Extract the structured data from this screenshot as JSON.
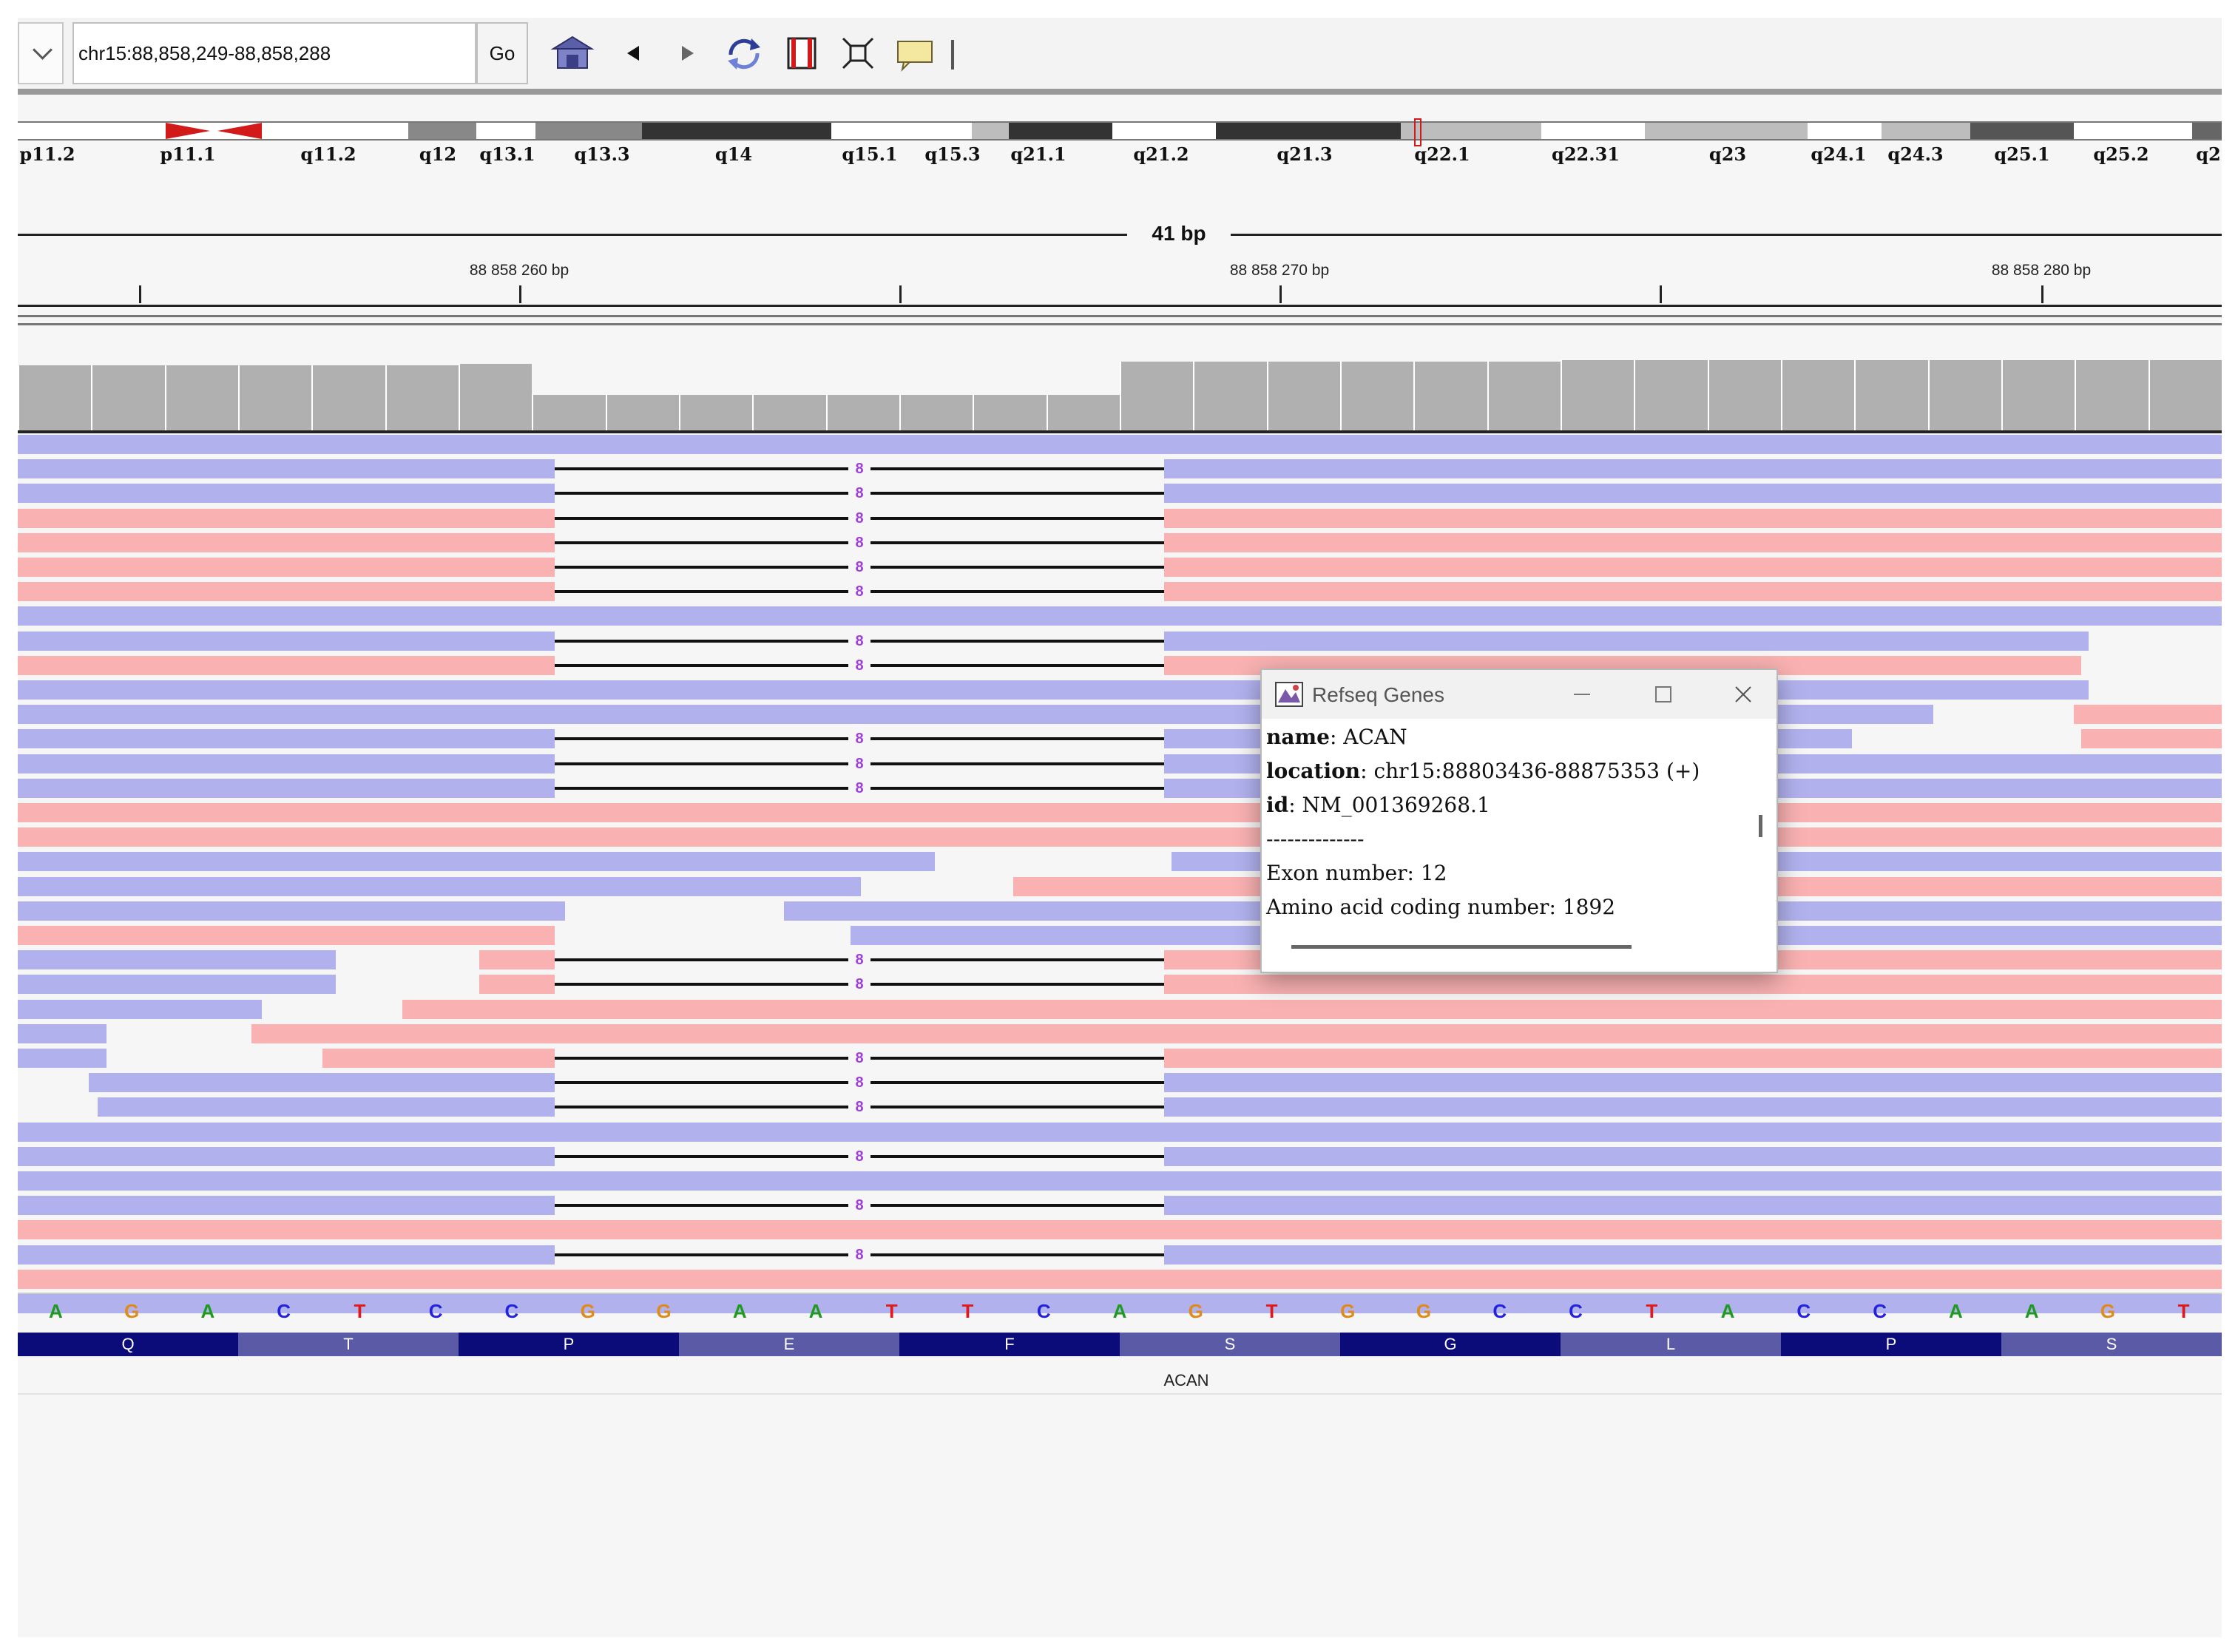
{
  "toolbar": {
    "locus": "chr15:88,858,249-88,858,288",
    "go_label": "Go",
    "icons": [
      "chevron-down-icon",
      "home-icon",
      "back-icon",
      "forward-icon",
      "refresh-icon",
      "region-of-interest-icon",
      "fit-window-icon",
      "popup-info-icon",
      "resize-handle-icon"
    ]
  },
  "ideogram": {
    "bands": [
      "p11.2",
      "p11.1",
      "q11.2",
      "q12",
      "q13.1",
      "q13.3",
      "q14",
      "q15.1",
      "q15.3",
      "q21.1",
      "q21.2",
      "q21.3",
      "q22.1",
      "q22.31",
      "q23",
      "q24.1",
      "q24.3",
      "q25.1",
      "q25.2",
      "q2"
    ]
  },
  "ruler": {
    "span_label": "41 bp",
    "tick_labels": [
      "88 858 260 bp",
      "88 858 270 bp",
      "88 858 280 bp"
    ]
  },
  "coverage": {
    "depths": [
      36,
      36,
      36,
      36,
      36,
      36,
      37,
      20,
      20,
      20,
      20,
      20,
      20,
      20,
      20,
      38,
      38,
      38,
      38,
      38,
      38,
      39,
      39,
      39,
      39,
      39,
      39,
      39,
      39,
      39
    ]
  },
  "reads": {
    "colors": {
      "forward": "#b1b1ee",
      "reverse": "#f9b1b1"
    },
    "deletion_label": "8"
  },
  "sequence": {
    "bases": [
      "A",
      "G",
      "A",
      "C",
      "T",
      "C",
      "C",
      "G",
      "G",
      "A",
      "A",
      "T",
      "T",
      "C",
      "A",
      "G",
      "T",
      "G",
      "G",
      "C",
      "C",
      "T",
      "A",
      "C",
      "C",
      "A",
      "A",
      "G",
      "T"
    ],
    "base_colors": {
      "A": "#1e9a1e",
      "C": "#2222e0",
      "G": "#e08a1a",
      "T": "#e01a1a"
    }
  },
  "translation": {
    "amino_acids": [
      "Q",
      "T",
      "P",
      "E",
      "F",
      "S",
      "G",
      "L",
      "P",
      "S"
    ]
  },
  "gene_track": {
    "label": "ACAN"
  },
  "popup": {
    "title": "Refseq Genes",
    "name_key": "name",
    "name_value": ": ACAN",
    "location_key": "location",
    "location_value": ": chr15:88803436-88875353 (+)",
    "id_key": "id",
    "id_value": ": NM_001369268.1",
    "separator": "--------------",
    "exon": "Exon number: 12",
    "aa": "Amino acid coding number: 1892",
    "buttons": [
      "minimize-icon",
      "maximize-icon",
      "close-icon"
    ]
  }
}
